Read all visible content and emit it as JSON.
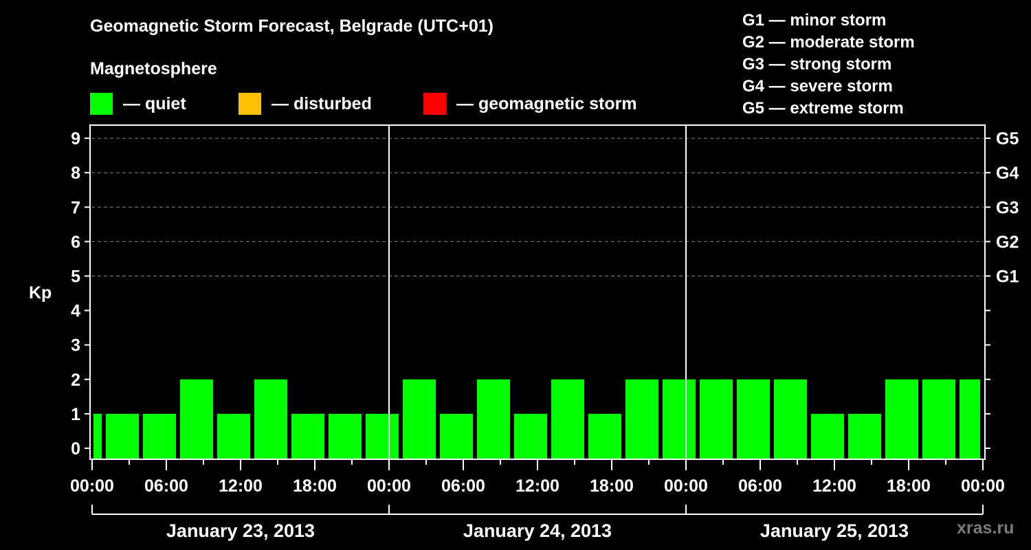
{
  "header": {
    "title": "Geomagnetic Storm Forecast, Belgrade (UTC+01)",
    "subtitle": "Magnetosphere"
  },
  "legend": {
    "items": [
      {
        "label": "— quiet",
        "color": "#00ff00"
      },
      {
        "label": "— disturbed",
        "color": "#ffc000"
      },
      {
        "label": "— geomagnetic storm",
        "color": "#ff0000"
      }
    ]
  },
  "g_scale_legend": [
    "G1 — minor storm",
    "G2 — moderate storm",
    "G3 — strong storm",
    "G4 — severe storm",
    "G5 — extreme storm"
  ],
  "watermark": "xras.ru",
  "chart_data": {
    "type": "bar",
    "title": "Geomagnetic Storm Forecast, Belgrade (UTC+01)",
    "xlabel": "",
    "ylabel": "Kp",
    "ylim": [
      0,
      9
    ],
    "yticks": [
      0,
      1,
      2,
      3,
      4,
      5,
      6,
      7,
      8,
      9
    ],
    "y2_ticks": [
      {
        "kp": 5,
        "label": "G1"
      },
      {
        "kp": 6,
        "label": "G2"
      },
      {
        "kp": 7,
        "label": "G3"
      },
      {
        "kp": 8,
        "label": "G4"
      },
      {
        "kp": 9,
        "label": "G5"
      }
    ],
    "grid": "dashed horizontal at Kp 5-9",
    "x_tick_labels": [
      "00:00",
      "06:00",
      "12:00",
      "18:00",
      "00:00",
      "06:00",
      "12:00",
      "18:00",
      "00:00",
      "06:00",
      "12:00",
      "18:00",
      "00:00"
    ],
    "days": [
      "January 23, 2013",
      "January 24, 2013",
      "January 25, 2013"
    ],
    "bar_interval_hours": 3,
    "first_bar_start_hour_local": -2,
    "categories": [
      "Jan 23 22:00-01:00",
      "01:00-04:00",
      "04:00-07:00",
      "07:00-10:00",
      "10:00-13:00",
      "13:00-16:00",
      "16:00-19:00",
      "19:00-22:00",
      "22:00-01:00",
      "Jan 24 01:00-04:00",
      "04:00-07:00",
      "07:00-10:00",
      "10:00-13:00",
      "13:00-16:00",
      "16:00-19:00",
      "19:00-22:00",
      "22:00-01:00",
      "Jan 25 01:00-04:00",
      "04:00-07:00",
      "07:00-10:00",
      "10:00-13:00",
      "13:00-16:00",
      "16:00-19:00",
      "19:00-22:00",
      "22:00-01:00"
    ],
    "values": [
      1,
      1,
      1,
      2,
      1,
      2,
      1,
      1,
      1,
      2,
      1,
      2,
      1,
      2,
      1,
      2,
      2,
      2,
      2,
      2,
      1,
      1,
      2,
      2,
      2
    ],
    "bar_color": "#00ff00"
  }
}
